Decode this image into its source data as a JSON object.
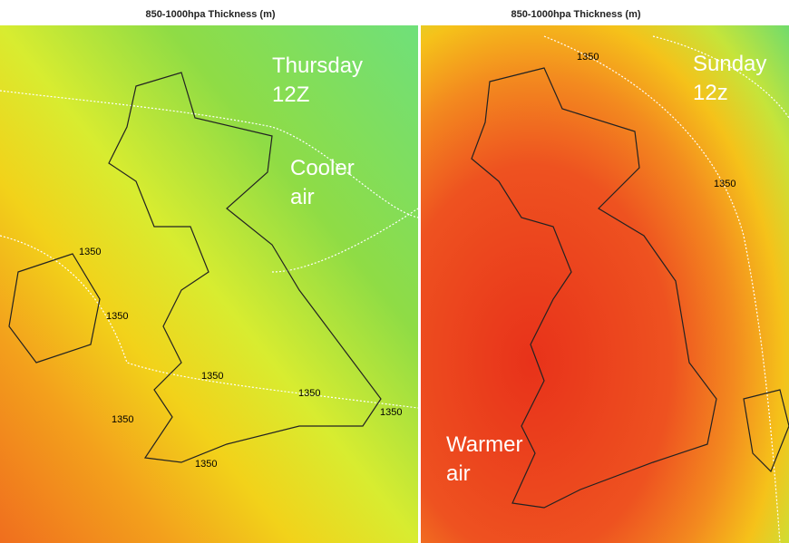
{
  "panels": [
    {
      "title": "850-1000hpa Thickness (m)",
      "time": [
        "Thursday",
        "12Z"
      ],
      "note": [
        "Cooler",
        "air"
      ],
      "contour_labels": [
        "1350",
        "1350",
        "1350",
        "1350",
        "1350",
        "1350",
        "1350"
      ]
    },
    {
      "title": "850-1000hpa Thickness (m)",
      "time": [
        "Sunday",
        "12z"
      ],
      "note": [
        "Warmer",
        "air"
      ],
      "contour_labels": [
        "1350",
        "1350"
      ]
    }
  ]
}
